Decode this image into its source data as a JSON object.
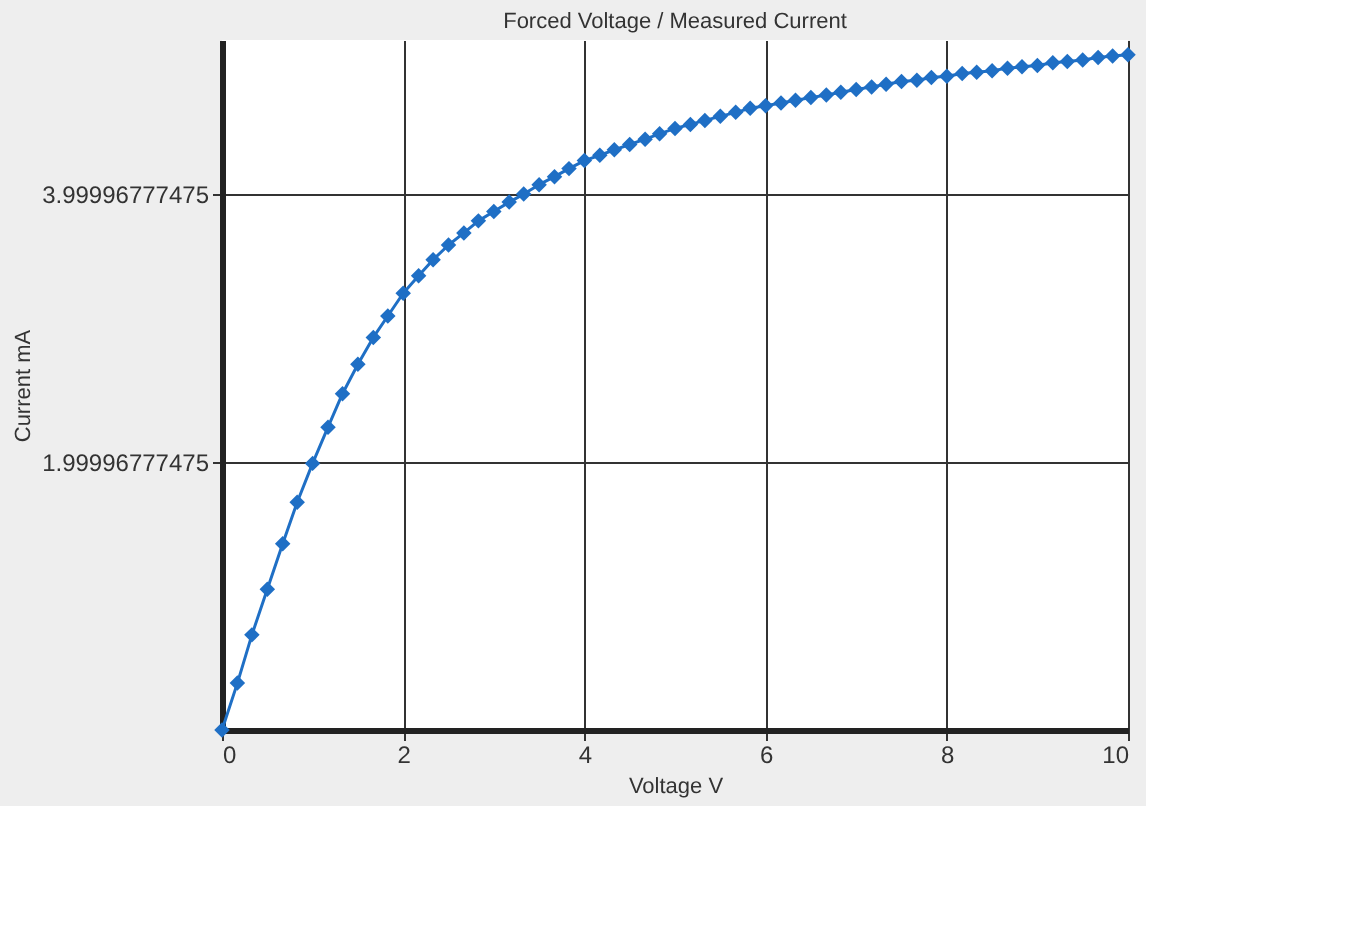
{
  "chart_data": {
    "type": "line",
    "title": "Forced Voltage / Measured Current",
    "xlabel": "Voltage V",
    "ylabel": "Current mA",
    "x": [
      0,
      0.17,
      0.33,
      0.5,
      0.67,
      0.83,
      1,
      1.17,
      1.33,
      1.5,
      1.67,
      1.83,
      2,
      2.17,
      2.33,
      2.5,
      2.67,
      2.83,
      3,
      3.17,
      3.33,
      3.5,
      3.67,
      3.83,
      4,
      4.17,
      4.33,
      4.5,
      4.67,
      4.83,
      5,
      5.17,
      5.33,
      5.5,
      5.67,
      5.83,
      6,
      6.17,
      6.33,
      6.5,
      6.67,
      6.83,
      7,
      7.17,
      7.33,
      7.5,
      7.67,
      7.83,
      8,
      8.17,
      8.33,
      8.5,
      8.67,
      8.83,
      9,
      9.17,
      9.33,
      9.5,
      9.67,
      9.83,
      10
    ],
    "series": [
      {
        "color": "#1f6fc5",
        "values": [
          0,
          0.35,
          0.71,
          1.05,
          1.39,
          1.7,
          1.99,
          2.26,
          2.51,
          2.73,
          2.93,
          3.09,
          3.26,
          3.39,
          3.51,
          3.62,
          3.71,
          3.8,
          3.87,
          3.94,
          4.0,
          4.07,
          4.13,
          4.19,
          4.25,
          4.29,
          4.33,
          4.37,
          4.41,
          4.45,
          4.49,
          4.52,
          4.55,
          4.58,
          4.61,
          4.64,
          4.66,
          4.68,
          4.7,
          4.72,
          4.74,
          4.76,
          4.78,
          4.8,
          4.82,
          4.84,
          4.85,
          4.87,
          4.88,
          4.9,
          4.91,
          4.92,
          4.94,
          4.95,
          4.96,
          4.98,
          4.99,
          5.0,
          5.02,
          5.03,
          5.04
        ]
      }
    ],
    "xlim": [
      0,
      10
    ],
    "xticks": [
      0,
      2,
      4,
      6,
      8,
      10
    ],
    "ylim": [
      0,
      5.15
    ],
    "yticks": [
      1.99996777475,
      3.99996777475
    ],
    "grid": true,
    "marker": "diamond",
    "line_style": "solid",
    "legend": false
  }
}
